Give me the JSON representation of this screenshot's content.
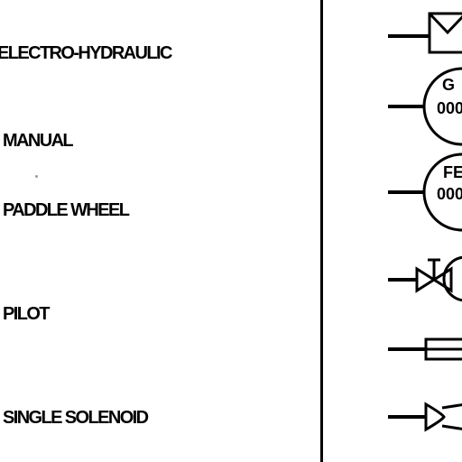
{
  "legend": {
    "rows": [
      {
        "label": "ELECTRO-HYDRAULIC",
        "symbol": "electro-hydraulic-actuator-symbol"
      },
      {
        "label": "MANUAL",
        "symbol": "manual-instrument-bubble-symbol",
        "bubble_top": "G",
        "bubble_bottom": "000"
      },
      {
        "label": "PADDLE WHEEL",
        "symbol": "paddle-wheel-instrument-bubble-symbol",
        "bubble_top": "FE",
        "bubble_bottom": "000"
      },
      {
        "label": "PILOT",
        "symbol": "pilot-valve-symbol"
      },
      {
        "label": "SINGLE SOLENOID",
        "symbol": "single-solenoid-symbol"
      }
    ]
  },
  "colors": {
    "ink": "#000000",
    "background": "#ffffff"
  }
}
